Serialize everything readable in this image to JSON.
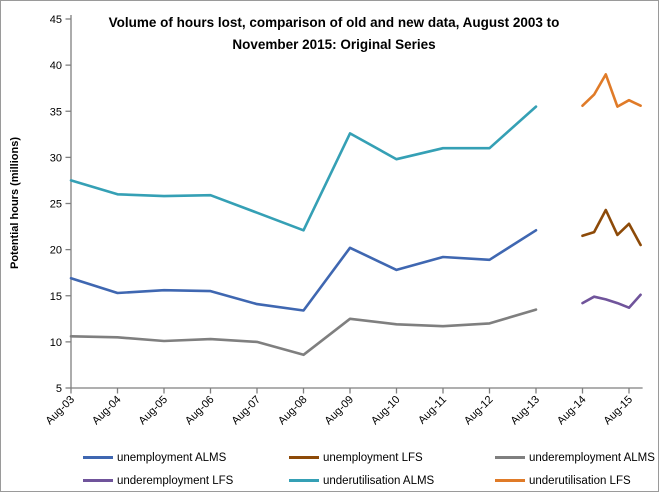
{
  "chart_data": {
    "type": "line",
    "title": "Volume of hours lost, comparison of old and new data, August 2003 to November 2015: Original Series",
    "title_lines": [
      "Volume of hours lost, comparison of old and new data, August 2003 to",
      "November 2015: Original Series"
    ],
    "ylabel": "Potential hours (millions)",
    "xlabel": "",
    "ylim": [
      5,
      45
    ],
    "ytick_step": 5,
    "yticks": [
      5,
      10,
      15,
      20,
      25,
      30,
      35,
      40,
      45
    ],
    "xtick_labels": [
      "Aug-03",
      "Aug-04",
      "Aug-05",
      "Aug-06",
      "Aug-07",
      "Aug-08",
      "Aug-09",
      "Aug-10",
      "Aug-11",
      "Aug-12",
      "Aug-13",
      "Aug-14",
      "Aug-15"
    ],
    "grid": false,
    "legend_position": "bottom",
    "axis_color": "#7F7F7F",
    "text_color": "#000000",
    "series": [
      {
        "name": "unemployment ALMS",
        "color": "#3F67B1",
        "periods": [
          "Aug-03",
          "Aug-04",
          "Aug-05",
          "Aug-06",
          "Aug-07",
          "Aug-08",
          "Aug-09",
          "Aug-10",
          "Aug-11",
          "Aug-12",
          "Aug-13"
        ],
        "values": [
          16.9,
          15.3,
          15.6,
          15.5,
          14.1,
          13.4,
          20.2,
          17.8,
          19.2,
          18.9,
          22.1
        ]
      },
      {
        "name": "unemployment LFS",
        "color": "#8D4A08",
        "periods": [
          "Aug-14",
          "Nov-14",
          "Feb-15",
          "May-15",
          "Aug-15",
          "Nov-15"
        ],
        "values": [
          21.5,
          21.9,
          24.3,
          21.6,
          22.8,
          20.5
        ]
      },
      {
        "name": "underemployment ALMS",
        "color": "#7F7F7F",
        "periods": [
          "Aug-03",
          "Aug-04",
          "Aug-05",
          "Aug-06",
          "Aug-07",
          "Aug-08",
          "Aug-09",
          "Aug-10",
          "Aug-11",
          "Aug-12",
          "Aug-13"
        ],
        "values": [
          10.6,
          10.5,
          10.1,
          10.3,
          10.0,
          8.6,
          12.5,
          11.9,
          11.7,
          12.0,
          13.5
        ]
      },
      {
        "name": "underemployment LFS",
        "color": "#70549B",
        "periods": [
          "Aug-14",
          "Nov-14",
          "Feb-15",
          "May-15",
          "Aug-15",
          "Nov-15"
        ],
        "values": [
          14.2,
          14.9,
          14.6,
          14.2,
          13.7,
          15.1
        ]
      },
      {
        "name": "underutilisation ALMS",
        "color": "#35A0B5",
        "periods": [
          "Aug-03",
          "Aug-04",
          "Aug-05",
          "Aug-06",
          "Aug-07",
          "Aug-08",
          "Aug-09",
          "Aug-10",
          "Aug-11",
          "Aug-12",
          "Aug-13"
        ],
        "values": [
          27.5,
          26.0,
          25.8,
          25.9,
          24.0,
          22.1,
          32.6,
          29.8,
          31.0,
          31.0,
          35.5
        ]
      },
      {
        "name": "underutilisation LFS",
        "color": "#E07B28",
        "periods": [
          "Aug-14",
          "Nov-14",
          "Feb-15",
          "May-15",
          "Aug-15",
          "Nov-15"
        ],
        "values": [
          35.6,
          36.8,
          39.0,
          35.5,
          36.2,
          35.6
        ]
      }
    ]
  }
}
